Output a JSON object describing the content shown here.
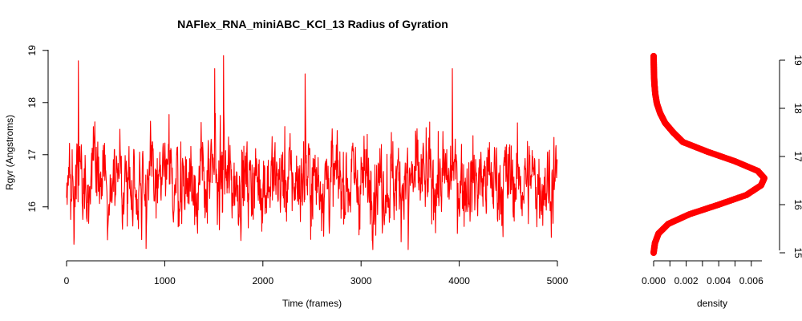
{
  "chart_data": [
    {
      "type": "line",
      "title": "NAFlex_RNA_miniABC_KCl_13 Radius of Gyration",
      "xlabel": "Time (frames)",
      "ylabel": "Rgyr (Angstroms)",
      "xlim": [
        0,
        5000
      ],
      "ylim": [
        15.15,
        18.92
      ],
      "x_ticks": [
        "0",
        "1000",
        "2000",
        "3000",
        "4000",
        "5000"
      ],
      "y_ticks": [
        "16",
        "17",
        "18",
        "19"
      ],
      "series": [
        {
          "color": "#ff0000",
          "n_frames": 5000,
          "mean": 16.5,
          "sd": 0.42,
          "min": 15.18,
          "max": 18.9,
          "peaks": [
            {
              "x": 120,
              "y": 18.8
            },
            {
              "x": 1510,
              "y": 18.65
            },
            {
              "x": 1600,
              "y": 18.9
            },
            {
              "x": 2430,
              "y": 18.55
            },
            {
              "x": 3930,
              "y": 18.65
            },
            {
              "x": 810,
              "y": 15.2
            },
            {
              "x": 3480,
              "y": 15.15
            }
          ]
        }
      ]
    },
    {
      "type": "line",
      "orientation": "vertical",
      "xlabel": "density",
      "xlim": [
        0,
        0.0068
      ],
      "ylim": [
        15.0,
        19.1
      ],
      "x_ticks": [
        "0.000",
        "0.002",
        "0.004",
        "0.006"
      ],
      "y_ticks": [
        "15",
        "16",
        "17",
        "18",
        "19"
      ],
      "series": [
        {
          "color": "#ff0000",
          "points": [
            {
              "rg": 15.0,
              "d": 0.0
            },
            {
              "rg": 15.2,
              "d": 8e-05
            },
            {
              "rg": 15.4,
              "d": 0.0003
            },
            {
              "rg": 15.6,
              "d": 0.0009
            },
            {
              "rg": 15.8,
              "d": 0.0022
            },
            {
              "rg": 16.0,
              "d": 0.004
            },
            {
              "rg": 16.2,
              "d": 0.0057
            },
            {
              "rg": 16.4,
              "d": 0.0066
            },
            {
              "rg": 16.55,
              "d": 0.0068
            },
            {
              "rg": 16.7,
              "d": 0.0064
            },
            {
              "rg": 16.9,
              "d": 0.005
            },
            {
              "rg": 17.1,
              "d": 0.0033
            },
            {
              "rg": 17.3,
              "d": 0.0018
            },
            {
              "rg": 17.5,
              "d": 0.0012
            },
            {
              "rg": 17.7,
              "d": 0.0007
            },
            {
              "rg": 17.9,
              "d": 0.0004
            },
            {
              "rg": 18.1,
              "d": 0.0002
            },
            {
              "rg": 18.3,
              "d": 0.0001
            },
            {
              "rg": 18.5,
              "d": 5e-05
            },
            {
              "rg": 18.7,
              "d": 2e-05
            },
            {
              "rg": 18.9,
              "d": 1e-05
            },
            {
              "rg": 19.1,
              "d": 0.0
            }
          ]
        }
      ]
    }
  ]
}
